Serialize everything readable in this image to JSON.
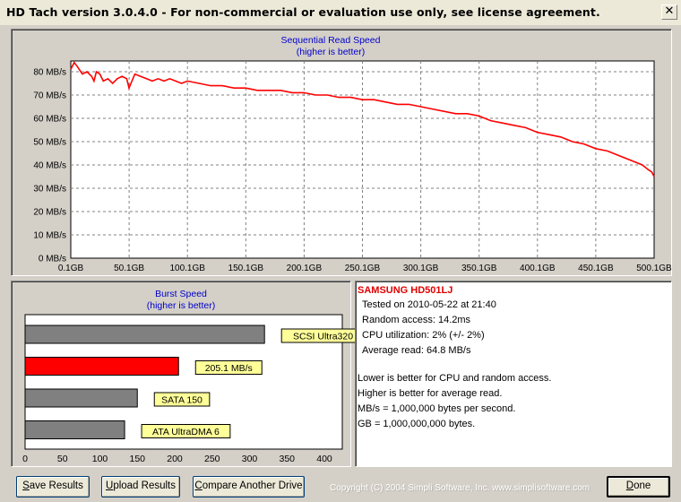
{
  "window": {
    "title": "HD Tach version 3.0.4.0  - For non-commercial or evaluation use only, see license agreement.",
    "close_glyph": "✕"
  },
  "read_chart": {
    "title": "Sequential Read Speed",
    "subtitle": "(higher is better)",
    "y_ticks": [
      "80 MB/s",
      "70 MB/s",
      "60 MB/s",
      "50 MB/s",
      "40 MB/s",
      "30 MB/s",
      "20 MB/s",
      "10 MB/s",
      "0 MB/s"
    ],
    "x_ticks": [
      "0.1GB",
      "50.1GB",
      "100.1GB",
      "150.1GB",
      "200.1GB",
      "250.1GB",
      "300.1GB",
      "350.1GB",
      "400.1GB",
      "450.1GB",
      "500.1GB"
    ],
    "line_color": "#ff0000"
  },
  "burst_chart": {
    "title": "Burst Speed",
    "subtitle": "(higher is better)",
    "x_ticks": [
      "0",
      "50",
      "100",
      "150",
      "200",
      "250",
      "300",
      "350",
      "400"
    ],
    "highlight_color": "#ff0000",
    "bar_color": "#808080",
    "label_bg": "#ffff99"
  },
  "chart_data": [
    {
      "type": "line",
      "title": "Sequential Read Speed",
      "subtitle": "(higher is better)",
      "xlabel": "",
      "ylabel": "",
      "xlim": [
        0.1,
        500.1
      ],
      "ylim": [
        0,
        80
      ],
      "x": [
        0.1,
        3,
        6,
        10,
        14,
        18,
        20,
        22,
        25,
        28,
        32,
        36,
        40,
        44,
        48,
        50,
        55,
        60,
        65,
        70,
        75,
        80,
        85,
        90,
        95,
        100,
        110,
        120,
        130,
        140,
        150,
        160,
        170,
        180,
        190,
        200,
        210,
        220,
        230,
        240,
        250,
        260,
        270,
        280,
        290,
        300,
        310,
        320,
        330,
        340,
        350,
        360,
        370,
        380,
        390,
        400,
        410,
        420,
        430,
        440,
        450,
        460,
        470,
        480,
        490,
        495,
        498,
        500.1
      ],
      "values": [
        81,
        84,
        82,
        79,
        80,
        78,
        76,
        80,
        79,
        76,
        77,
        75,
        77,
        78,
        77,
        73,
        79,
        78,
        77,
        76,
        77,
        76,
        77,
        76,
        75,
        76,
        75,
        74,
        74,
        73,
        73,
        72,
        72,
        72,
        71,
        71,
        70,
        70,
        69,
        69,
        68,
        68,
        67,
        66,
        66,
        65,
        64,
        63,
        62,
        62,
        61,
        59,
        58,
        57,
        56,
        54,
        53,
        52,
        50,
        49,
        47,
        46,
        44,
        42,
        40,
        38,
        37,
        35
      ],
      "grid": true,
      "legend": "none"
    },
    {
      "type": "bar",
      "orientation": "horizontal",
      "title": "Burst Speed",
      "subtitle": "(higher is better)",
      "xlim": [
        0,
        400
      ],
      "categories": [
        "SCSI Ultra320",
        "205.1 MB/s",
        "SATA 150",
        "ATA UltraDMA 6"
      ],
      "values": [
        320,
        205.1,
        150,
        133
      ],
      "highlight": "205.1 MB/s"
    }
  ],
  "info": {
    "drive": "SAMSUNG HD501LJ",
    "tested": "Tested on 2010-05-22 at 21:40",
    "random": "Random access: 14.2ms",
    "cpu": "CPU utilization: 2% (+/- 2%)",
    "avg": "Average read: 64.8 MB/s",
    "note1": "Lower is better for CPU and random access.",
    "note2": "Higher is better for average read.",
    "note3": "MB/s = 1,000,000 bytes per second.",
    "note4": "GB = 1,000,000,000 bytes."
  },
  "buttons": {
    "save_u": "S",
    "save_rest": "ave Results",
    "upload_u": "U",
    "upload_rest": "pload Results",
    "compare_u": "C",
    "compare_rest": "ompare Another Drive",
    "done_u": "D",
    "done_rest": "one"
  },
  "footer": {
    "copyright": "Copyright (C) 2004 Simpli Software, Inc. www.simplisoftware.com"
  }
}
